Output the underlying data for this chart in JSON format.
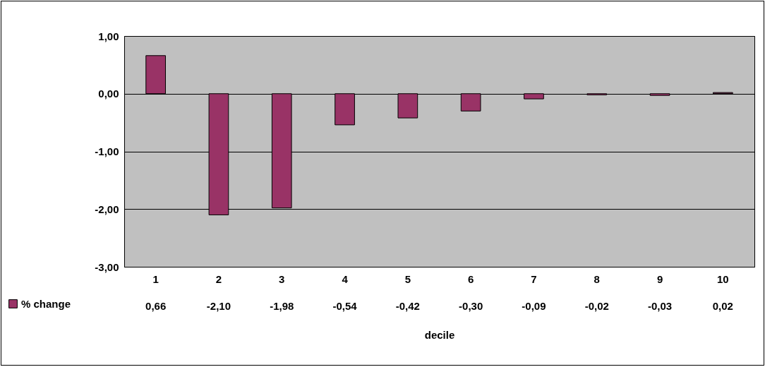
{
  "chart_data": {
    "type": "bar",
    "xlabel": "decile",
    "categories": [
      "1",
      "2",
      "3",
      "4",
      "5",
      "6",
      "7",
      "8",
      "9",
      "10"
    ],
    "series": [
      {
        "name": "% change",
        "color": "#993366",
        "values": [
          0.66,
          -2.1,
          -1.98,
          -0.54,
          -0.42,
          -0.3,
          -0.09,
          -0.02,
          -0.03,
          0.02
        ],
        "value_labels": [
          "0,66",
          "-2,10",
          "-1,98",
          "-0,54",
          "-0,42",
          "-0,30",
          "-0,09",
          "-0,02",
          "-0,03",
          "0,02"
        ]
      }
    ],
    "ylim": [
      -3,
      1
    ],
    "yticks": [
      {
        "value": -3,
        "label": "-3,00"
      },
      {
        "value": -2,
        "label": "-2,00"
      },
      {
        "value": -1,
        "label": "-1,00"
      },
      {
        "value": 0,
        "label": "0,00"
      },
      {
        "value": 1,
        "label": "1,00"
      }
    ],
    "grid": "y",
    "legend": "bottom left"
  }
}
